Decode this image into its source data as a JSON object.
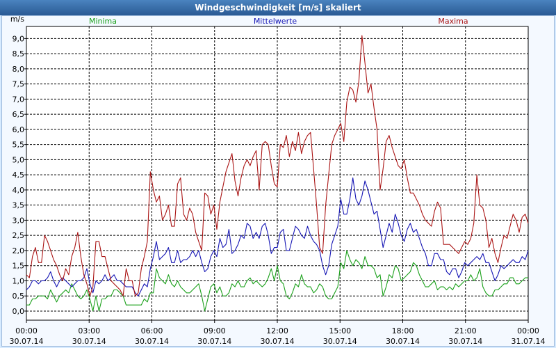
{
  "title": "Windgeschwindigkeit [m/s] skaliert",
  "chart_data": {
    "type": "line",
    "ylabel": "m/s",
    "ylim": [
      -0.3,
      9.4
    ],
    "y_ticks": [
      "0,0",
      "0,5",
      "1,0",
      "1,5",
      "2,0",
      "2,5",
      "3,0",
      "3,5",
      "4,0",
      "4,5",
      "5,0",
      "5,5",
      "6,0",
      "6,5",
      "7,0",
      "7,5",
      "8,0",
      "8,5",
      "9,0"
    ],
    "x_ticks": [
      {
        "time": "00:00",
        "date": "30.07.14"
      },
      {
        "time": "03:00",
        "date": "30.07.14"
      },
      {
        "time": "06:00",
        "date": "30.07.14"
      },
      {
        "time": "09:00",
        "date": "30.07.14"
      },
      {
        "time": "12:00",
        "date": "30.07.14"
      },
      {
        "time": "15:00",
        "date": "30.07.14"
      },
      {
        "time": "18:00",
        "date": "30.07.14"
      },
      {
        "time": "21:00",
        "date": "30.07.14"
      },
      {
        "time": "00:00",
        "date": "31.07.14"
      }
    ],
    "series": [
      {
        "name": "Minima",
        "color": "#1aa01a",
        "values": [
          0.2,
          0.2,
          0.4,
          0.4,
          0.5,
          0.5,
          0.5,
          0.4,
          0.7,
          0.5,
          0.3,
          0.5,
          0.6,
          0.7,
          0.6,
          0.9,
          0.7,
          0.5,
          0.4,
          0.5,
          0.7,
          0.4,
          0.0,
          0.5,
          0.0,
          0.4,
          0.4,
          0.5,
          0.5,
          0.7,
          0.7,
          0.6,
          0.5,
          0.2,
          0.2,
          0.2,
          0.2,
          0.2,
          0.2,
          0.4,
          0.3,
          0.6,
          0.6,
          1.4,
          1.1,
          1.0,
          0.9,
          1.2,
          0.9,
          0.8,
          1.0,
          0.8,
          0.7,
          0.6,
          0.6,
          0.7,
          0.8,
          0.9,
          0.5,
          0.0,
          0.4,
          0.8,
          0.9,
          0.6,
          0.8,
          0.5,
          0.5,
          0.6,
          0.9,
          0.8,
          1.0,
          0.8,
          0.8,
          1.0,
          1.1,
          0.9,
          1.0,
          0.9,
          0.8,
          0.9,
          1.1,
          1.4,
          1.0,
          1.5,
          1.0,
          0.9,
          0.5,
          0.4,
          0.6,
          0.9,
          0.8,
          1.2,
          0.9,
          0.8,
          0.8,
          0.6,
          0.7,
          0.9,
          0.8,
          0.5,
          0.4,
          0.4,
          0.6,
          0.8,
          1.6,
          1.4,
          2.0,
          1.7,
          1.5,
          1.7,
          1.6,
          1.4,
          1.8,
          1.5,
          1.5,
          1.4,
          1.1,
          1.2,
          0.5,
          0.8,
          1.2,
          1.1,
          1.5,
          1.4,
          1.0,
          1.1,
          1.2,
          1.3,
          1.6,
          1.5,
          1.2,
          1.0,
          0.8,
          0.8,
          0.9,
          1.0,
          0.7,
          0.8,
          0.8,
          0.7,
          0.8,
          0.7,
          0.9,
          0.8,
          0.9,
          1.0,
          1.0,
          1.2,
          1.0,
          1.1,
          1.4,
          0.8,
          0.6,
          0.5,
          0.5,
          0.7,
          0.7,
          0.8,
          0.9,
          0.9,
          1.1,
          1.1,
          0.9,
          0.9,
          1.0,
          1.1,
          1.1
        ]
      },
      {
        "name": "Mittelwerte",
        "color": "#1515b4",
        "values": [
          0.7,
          0.8,
          1.0,
          1.0,
          0.9,
          1.0,
          1.0,
          1.1,
          1.3,
          1.0,
          0.8,
          1.0,
          1.1,
          1.0,
          0.9,
          0.8,
          0.9,
          1.0,
          1.0,
          1.1,
          1.4,
          0.9,
          0.6,
          1.0,
          0.9,
          1.0,
          1.2,
          1.0,
          1.1,
          1.2,
          1.0,
          1.0,
          0.9,
          0.8,
          0.8,
          0.8,
          0.6,
          0.5,
          0.7,
          0.9,
          0.8,
          1.4,
          1.8,
          2.3,
          1.7,
          1.8,
          1.9,
          2.1,
          1.6,
          1.6,
          2.0,
          1.6,
          1.7,
          1.7,
          1.8,
          2.0,
          1.8,
          2.0,
          1.6,
          1.3,
          1.4,
          1.8,
          2.0,
          1.8,
          2.4,
          2.1,
          2.2,
          2.7,
          1.9,
          2.0,
          2.2,
          2.5,
          2.4,
          2.9,
          2.8,
          2.4,
          2.6,
          2.4,
          2.8,
          2.9,
          2.5,
          1.9,
          2.1,
          2.1,
          2.6,
          2.7,
          2.0,
          2.0,
          2.4,
          2.8,
          2.7,
          2.5,
          2.4,
          2.8,
          2.5,
          2.3,
          2.2,
          2.0,
          1.5,
          1.2,
          1.5,
          2.2,
          2.5,
          2.8,
          3.7,
          3.2,
          3.2,
          3.7,
          4.4,
          3.7,
          3.5,
          3.8,
          4.3,
          4.0,
          3.6,
          3.2,
          3.3,
          2.7,
          2.1,
          2.5,
          2.9,
          2.6,
          3.2,
          2.9,
          2.5,
          2.3,
          2.7,
          2.9,
          2.6,
          2.7,
          2.4,
          2.1,
          1.9,
          1.5,
          1.5,
          1.9,
          1.9,
          1.7,
          1.7,
          1.3,
          1.2,
          1.4,
          1.4,
          1.1,
          1.3,
          1.6,
          1.5,
          1.6,
          1.7,
          1.8,
          1.7,
          1.9,
          1.6,
          1.6,
          1.3,
          1.0,
          1.2,
          1.5,
          1.4,
          1.5,
          1.6,
          1.7,
          1.6,
          1.6,
          1.8,
          1.7,
          2.0
        ]
      },
      {
        "name": "Maxima",
        "color": "#aa1414",
        "values": [
          1.2,
          1.1,
          1.8,
          2.1,
          1.6,
          1.6,
          2.5,
          2.3,
          2.0,
          1.7,
          1.5,
          1.2,
          1.0,
          1.4,
          1.2,
          1.8,
          2.1,
          2.6,
          1.8,
          1.2,
          0.9,
          0.5,
          0.8,
          2.3,
          2.3,
          1.8,
          1.8,
          1.4,
          1.0,
          0.9,
          0.8,
          0.7,
          0.5,
          1.4,
          1.0,
          1.0,
          0.5,
          0.6,
          1.4,
          1.8,
          2.3,
          4.6,
          4.0,
          3.6,
          3.8,
          3.0,
          3.2,
          3.5,
          2.8,
          2.8,
          4.2,
          4.4,
          3.2,
          3.0,
          3.4,
          3.2,
          2.6,
          2.3,
          2.0,
          3.9,
          3.8,
          3.2,
          3.5,
          2.7,
          3.6,
          4.1,
          4.6,
          4.9,
          5.2,
          4.3,
          3.8,
          4.4,
          4.8,
          5.0,
          4.8,
          5.1,
          5.3,
          4.0,
          5.5,
          5.6,
          5.5,
          4.8,
          4.2,
          4.1,
          5.5,
          5.4,
          5.8,
          5.1,
          5.6,
          5.3,
          5.9,
          5.2,
          5.6,
          5.8,
          5.9,
          4.7,
          3.5,
          2.1,
          1.9,
          3.5,
          4.5,
          5.5,
          5.8,
          6.0,
          6.2,
          5.6,
          6.9,
          7.4,
          7.3,
          6.9,
          7.6,
          9.1,
          8.2,
          7.2,
          7.5,
          6.7,
          6.0,
          4.0,
          4.7,
          5.6,
          5.8,
          5.4,
          5.1,
          4.8,
          4.7,
          5.0,
          4.4,
          3.9,
          3.9,
          3.7,
          3.5,
          3.2,
          3.0,
          2.9,
          2.8,
          3.3,
          3.6,
          3.4,
          2.2,
          2.2,
          2.2,
          2.1,
          2.0,
          1.9,
          2.1,
          2.3,
          2.2,
          2.4,
          2.9,
          4.5,
          3.5,
          3.4,
          3.0,
          2.1,
          2.4,
          1.9,
          1.6,
          2.1,
          2.5,
          2.4,
          2.8,
          3.2,
          3.0,
          2.6,
          3.1,
          3.2,
          2.9
        ]
      }
    ]
  }
}
